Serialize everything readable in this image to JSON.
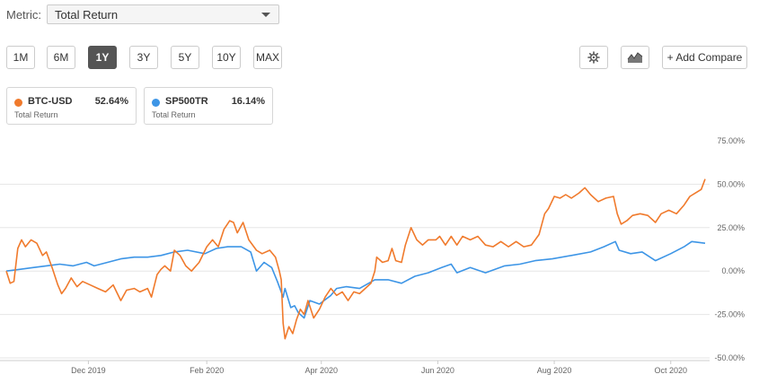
{
  "metric": {
    "label": "Metric:",
    "selected": "Total Return"
  },
  "ranges": [
    {
      "label": "1M",
      "active": false
    },
    {
      "label": "6M",
      "active": false
    },
    {
      "label": "1Y",
      "active": true
    },
    {
      "label": "3Y",
      "active": false
    },
    {
      "label": "5Y",
      "active": false
    },
    {
      "label": "10Y",
      "active": false
    },
    {
      "label": "MAX",
      "active": false
    }
  ],
  "toolbar": {
    "settings_icon": "gear-icon",
    "chart_type_icon": "area-chart-icon",
    "compare_label": "+ Add Compare"
  },
  "legend": [
    {
      "name": "BTC-USD",
      "value": "52.64%",
      "sub": "Total Return",
      "color": "#f07a2c"
    },
    {
      "name": "SP500TR",
      "value": "16.14%",
      "sub": "Total Return",
      "color": "#3d95e6"
    }
  ],
  "chart_data": {
    "type": "line",
    "x_tick_labels": [
      "Dec 2019",
      "Feb 2020",
      "Apr 2020",
      "Jun 2020",
      "Aug 2020",
      "Oct 2020"
    ],
    "y_tick_labels": [
      "75.00%",
      "50.00%",
      "25.00%",
      "0.00%",
      "-25.00%",
      "-50.00%"
    ],
    "ylim": [
      -50,
      75
    ],
    "x_range": [
      "2019-10-19",
      "2020-10-19"
    ],
    "grid": "horizontal",
    "series": [
      {
        "name": "BTC-USD",
        "color": "#f07a2c",
        "points": [
          [
            "2019-10-19",
            0
          ],
          [
            "2019-10-21",
            -7
          ],
          [
            "2019-10-23",
            -6
          ],
          [
            "2019-10-25",
            13
          ],
          [
            "2019-10-27",
            18
          ],
          [
            "2019-10-29",
            14
          ],
          [
            "2019-11-01",
            18
          ],
          [
            "2019-11-04",
            16
          ],
          [
            "2019-11-07",
            9
          ],
          [
            "2019-11-09",
            11
          ],
          [
            "2019-11-12",
            2
          ],
          [
            "2019-11-15",
            -8
          ],
          [
            "2019-11-17",
            -13
          ],
          [
            "2019-11-19",
            -10
          ],
          [
            "2019-11-22",
            -4
          ],
          [
            "2019-11-25",
            -9
          ],
          [
            "2019-11-28",
            -6
          ],
          [
            "2019-12-02",
            -8
          ],
          [
            "2019-12-06",
            -10
          ],
          [
            "2019-12-10",
            -12
          ],
          [
            "2019-12-14",
            -8
          ],
          [
            "2019-12-18",
            -17
          ],
          [
            "2019-12-21",
            -11
          ],
          [
            "2019-12-25",
            -10
          ],
          [
            "2019-12-28",
            -12
          ],
          [
            "2020-01-01",
            -10
          ],
          [
            "2020-01-03",
            -15
          ],
          [
            "2020-01-06",
            -2
          ],
          [
            "2020-01-08",
            1
          ],
          [
            "2020-01-10",
            3
          ],
          [
            "2020-01-13",
            0
          ],
          [
            "2020-01-15",
            12
          ],
          [
            "2020-01-18",
            9
          ],
          [
            "2020-01-21",
            3
          ],
          [
            "2020-01-24",
            0
          ],
          [
            "2020-01-28",
            5
          ],
          [
            "2020-02-01",
            14
          ],
          [
            "2020-02-04",
            18
          ],
          [
            "2020-02-07",
            14
          ],
          [
            "2020-02-10",
            24
          ],
          [
            "2020-02-13",
            29
          ],
          [
            "2020-02-15",
            28
          ],
          [
            "2020-02-17",
            22
          ],
          [
            "2020-02-20",
            28
          ],
          [
            "2020-02-23",
            18
          ],
          [
            "2020-02-27",
            12
          ],
          [
            "2020-03-01",
            10
          ],
          [
            "2020-03-05",
            12
          ],
          [
            "2020-03-08",
            8
          ],
          [
            "2020-03-10",
            0
          ],
          [
            "2020-03-11",
            -5
          ],
          [
            "2020-03-12",
            -30
          ],
          [
            "2020-03-13",
            -39
          ],
          [
            "2020-03-15",
            -32
          ],
          [
            "2020-03-17",
            -36
          ],
          [
            "2020-03-19",
            -28
          ],
          [
            "2020-03-21",
            -22
          ],
          [
            "2020-03-23",
            -25
          ],
          [
            "2020-03-25",
            -17
          ],
          [
            "2020-03-28",
            -27
          ],
          [
            "2020-03-31",
            -22
          ],
          [
            "2020-04-03",
            -15
          ],
          [
            "2020-04-06",
            -10
          ],
          [
            "2020-04-09",
            -14
          ],
          [
            "2020-04-12",
            -12
          ],
          [
            "2020-04-15",
            -17
          ],
          [
            "2020-04-18",
            -12
          ],
          [
            "2020-04-21",
            -13
          ],
          [
            "2020-04-24",
            -10
          ],
          [
            "2020-04-27",
            -7
          ],
          [
            "2020-04-29",
            0
          ],
          [
            "2020-04-30",
            8
          ],
          [
            "2020-05-03",
            5
          ],
          [
            "2020-05-06",
            6
          ],
          [
            "2020-05-08",
            13
          ],
          [
            "2020-05-10",
            6
          ],
          [
            "2020-05-13",
            5
          ],
          [
            "2020-05-15",
            15
          ],
          [
            "2020-05-18",
            25
          ],
          [
            "2020-05-21",
            18
          ],
          [
            "2020-05-24",
            15
          ],
          [
            "2020-05-27",
            18
          ],
          [
            "2020-05-31",
            18
          ],
          [
            "2020-06-02",
            20
          ],
          [
            "2020-06-05",
            15
          ],
          [
            "2020-06-08",
            20
          ],
          [
            "2020-06-11",
            15
          ],
          [
            "2020-06-14",
            20
          ],
          [
            "2020-06-18",
            18
          ],
          [
            "2020-06-22",
            20
          ],
          [
            "2020-06-26",
            15
          ],
          [
            "2020-06-30",
            14
          ],
          [
            "2020-07-04",
            17
          ],
          [
            "2020-07-08",
            14
          ],
          [
            "2020-07-12",
            17
          ],
          [
            "2020-07-16",
            14
          ],
          [
            "2020-07-20",
            15
          ],
          [
            "2020-07-24",
            21
          ],
          [
            "2020-07-27",
            33
          ],
          [
            "2020-07-29",
            36
          ],
          [
            "2020-08-01",
            43
          ],
          [
            "2020-08-04",
            42
          ],
          [
            "2020-08-07",
            44
          ],
          [
            "2020-08-10",
            42
          ],
          [
            "2020-08-14",
            45
          ],
          [
            "2020-08-17",
            48
          ],
          [
            "2020-08-20",
            44
          ],
          [
            "2020-08-24",
            40
          ],
          [
            "2020-08-28",
            42
          ],
          [
            "2020-09-01",
            43
          ],
          [
            "2020-09-03",
            33
          ],
          [
            "2020-09-05",
            27
          ],
          [
            "2020-09-08",
            29
          ],
          [
            "2020-09-11",
            32
          ],
          [
            "2020-09-15",
            33
          ],
          [
            "2020-09-19",
            32
          ],
          [
            "2020-09-23",
            28
          ],
          [
            "2020-09-26",
            33
          ],
          [
            "2020-09-30",
            35
          ],
          [
            "2020-10-04",
            33
          ],
          [
            "2020-10-08",
            38
          ],
          [
            "2020-10-11",
            43
          ],
          [
            "2020-10-14",
            45
          ],
          [
            "2020-10-17",
            47
          ],
          [
            "2020-10-19",
            53
          ]
        ]
      },
      {
        "name": "SP500TR",
        "color": "#3d95e6",
        "points": [
          [
            "2019-10-19",
            0
          ],
          [
            "2019-10-26",
            1
          ],
          [
            "2019-11-02",
            2
          ],
          [
            "2019-11-09",
            3
          ],
          [
            "2019-11-16",
            4
          ],
          [
            "2019-11-23",
            3
          ],
          [
            "2019-11-30",
            5
          ],
          [
            "2019-12-04",
            3
          ],
          [
            "2019-12-11",
            5
          ],
          [
            "2019-12-18",
            7
          ],
          [
            "2019-12-25",
            8
          ],
          [
            "2020-01-01",
            8
          ],
          [
            "2020-01-08",
            9
          ],
          [
            "2020-01-15",
            11
          ],
          [
            "2020-01-22",
            12
          ],
          [
            "2020-01-31",
            10
          ],
          [
            "2020-02-06",
            13
          ],
          [
            "2020-02-12",
            14
          ],
          [
            "2020-02-19",
            14
          ],
          [
            "2020-02-24",
            11
          ],
          [
            "2020-02-27",
            0
          ],
          [
            "2020-03-02",
            5
          ],
          [
            "2020-03-06",
            2
          ],
          [
            "2020-03-09",
            -6
          ],
          [
            "2020-03-12",
            -15
          ],
          [
            "2020-03-13",
            -10
          ],
          [
            "2020-03-16",
            -21
          ],
          [
            "2020-03-18",
            -20
          ],
          [
            "2020-03-20",
            -24
          ],
          [
            "2020-03-23",
            -27
          ],
          [
            "2020-03-26",
            -17
          ],
          [
            "2020-03-31",
            -19
          ],
          [
            "2020-04-06",
            -14
          ],
          [
            "2020-04-09",
            -10
          ],
          [
            "2020-04-14",
            -9
          ],
          [
            "2020-04-21",
            -10
          ],
          [
            "2020-04-29",
            -5
          ],
          [
            "2020-05-06",
            -5
          ],
          [
            "2020-05-13",
            -7
          ],
          [
            "2020-05-20",
            -3
          ],
          [
            "2020-05-27",
            -1
          ],
          [
            "2020-06-03",
            2
          ],
          [
            "2020-06-08",
            4
          ],
          [
            "2020-06-11",
            -1
          ],
          [
            "2020-06-18",
            2
          ],
          [
            "2020-06-26",
            -1
          ],
          [
            "2020-07-06",
            3
          ],
          [
            "2020-07-14",
            4
          ],
          [
            "2020-07-22",
            6
          ],
          [
            "2020-07-31",
            7
          ],
          [
            "2020-08-10",
            9
          ],
          [
            "2020-08-20",
            11
          ],
          [
            "2020-08-27",
            14
          ],
          [
            "2020-09-02",
            17
          ],
          [
            "2020-09-04",
            12
          ],
          [
            "2020-09-10",
            10
          ],
          [
            "2020-09-16",
            11
          ],
          [
            "2020-09-23",
            6
          ],
          [
            "2020-10-01",
            10
          ],
          [
            "2020-10-08",
            14
          ],
          [
            "2020-10-12",
            17
          ],
          [
            "2020-10-19",
            16
          ]
        ]
      }
    ]
  }
}
